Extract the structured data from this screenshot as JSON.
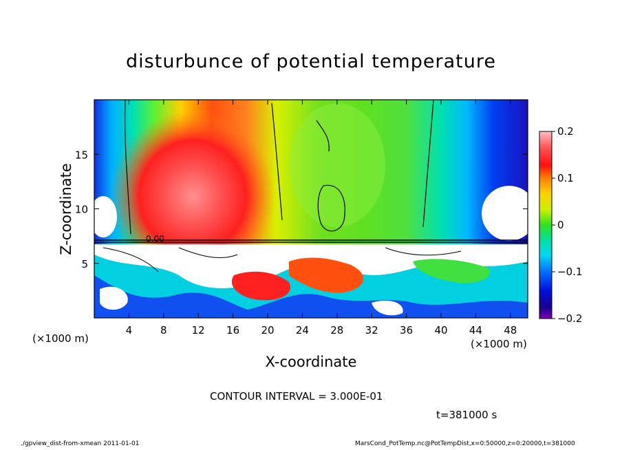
{
  "chart_data": {
    "type": "heatmap",
    "title": "disturbunce of potential temperature",
    "xlabel": "X-coordinate",
    "ylabel": "Z-coordinate",
    "x_unit": "(×1000 m)",
    "xlim": [
      0,
      50
    ],
    "ylim": [
      0,
      20
    ],
    "x_ticks": [
      4,
      8,
      12,
      16,
      20,
      24,
      28,
      32,
      36,
      40,
      44,
      48
    ],
    "y_ticks": [
      5,
      10,
      15
    ],
    "colorbar": {
      "range": [
        -0.2,
        0.2
      ],
      "ticks": [
        0.2,
        0.1,
        0,
        -0.1,
        -0.2
      ],
      "tick_labels": [
        "0.2",
        "0.1",
        "0",
        "−0.1",
        "−0.2"
      ]
    },
    "contour_label": "0.00",
    "contour_interval_text": "CONTOUR INTERVAL = 3.000E-01",
    "time_text": "t=381000 s"
  },
  "footer": {
    "left": "./gpview_dist-from-xmean  2011-01-01",
    "right": "MarsCond_PotTemp.nc@PotTempDist,x=0:50000,z=0:20000,t=381000"
  }
}
